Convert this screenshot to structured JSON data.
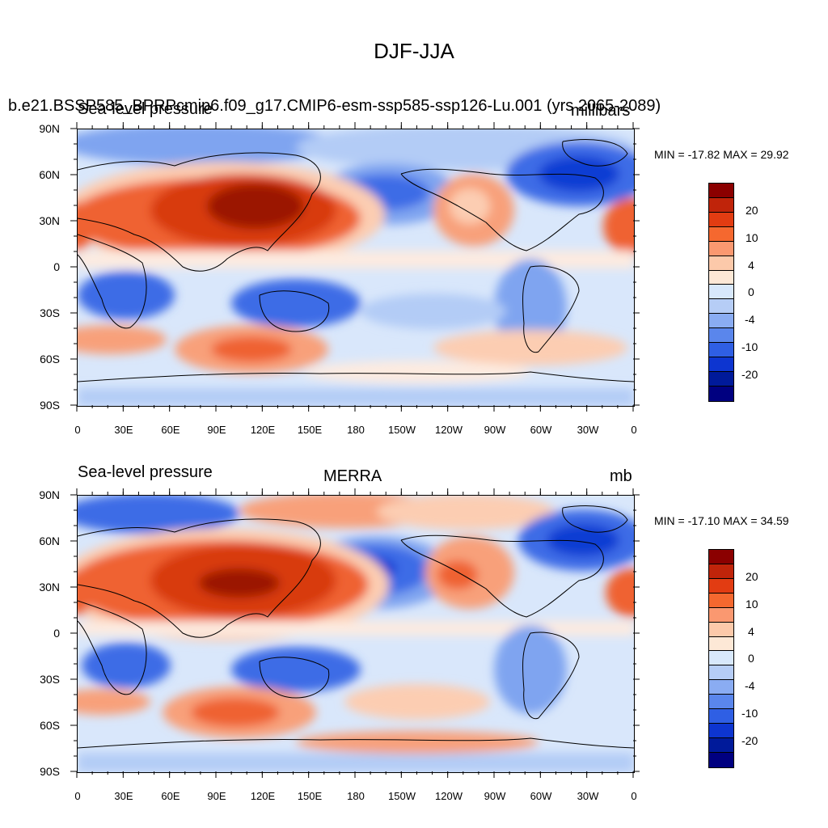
{
  "title": "DJF-JJA",
  "panels": [
    {
      "left_string": "Sea-level pressure",
      "overlapping_string": "b.e21.BSSP585_BPRPcmip6.f09_g17.CMIP6-esm-ssp585-ssp126-Lu.001 (yrs 2065-2089)",
      "right_string": "millibars",
      "minmax": "MIN = -17.82 MAX =  29.92",
      "center_string": ""
    },
    {
      "left_string": "Sea-level pressure",
      "center_string": "MERRA",
      "right_string": "mb",
      "minmax": "MIN = -17.10 MAX =  34.59",
      "overlapping_string": ""
    }
  ],
  "axes": {
    "lat_ticks": [
      "90N",
      "60N",
      "30N",
      "0",
      "30S",
      "60S",
      "90S"
    ],
    "lon_ticks": [
      "0",
      "30E",
      "60E",
      "90E",
      "120E",
      "150E",
      "180",
      "150W",
      "120W",
      "90W",
      "60W",
      "30W",
      "0"
    ]
  },
  "colorbar": {
    "labels": [
      "20",
      "10",
      "4",
      "0",
      "-4",
      "-10",
      "-20"
    ],
    "colors": [
      "#8b0000",
      "#c0240a",
      "#e23c12",
      "#f5682f",
      "#fa9870",
      "#fcc9aa",
      "#fde8d6",
      "#d8e8fb",
      "#b6cdf6",
      "#8aacf2",
      "#5a86ec",
      "#2f5fe4",
      "#0d35d0",
      "#001a9a",
      "#000080"
    ]
  },
  "palette": {
    "deep_red": "#9b1200",
    "red": "#d83a10",
    "orange_red": "#ef6230",
    "salmon": "#f8a07a",
    "peach": "#fccdb2",
    "cream": "#fdebe0",
    "pale_blue": "#d9e7fb",
    "light_blue": "#b3ccf6",
    "mid_blue": "#7fa4f0",
    "blue": "#3c6ce6",
    "deep_blue": "#0f3ed3"
  }
}
